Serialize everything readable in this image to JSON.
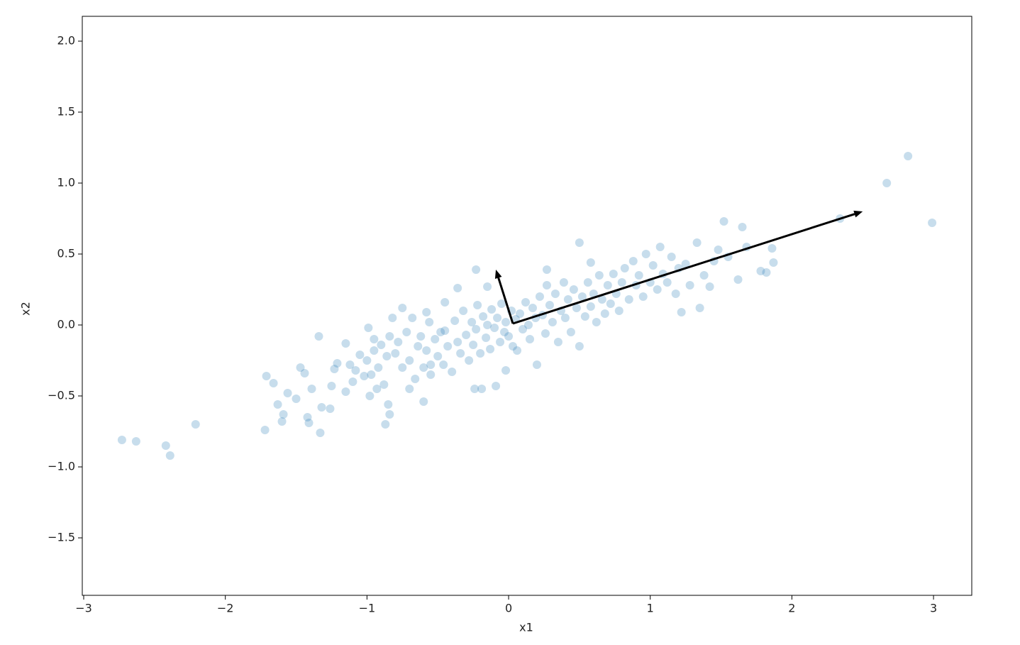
{
  "chart_data": {
    "type": "scatter",
    "xlabel": "x1",
    "ylabel": "x2",
    "xlim": [
      -3.01,
      3.27
    ],
    "ylim": [
      -1.905,
      2.175
    ],
    "xticks": [
      {
        "value": -3,
        "label": "−3"
      },
      {
        "value": -2,
        "label": "−2"
      },
      {
        "value": -1,
        "label": "−1"
      },
      0,
      1,
      2,
      3
    ],
    "yticks": [
      {
        "value": -1.5,
        "label": "−1.5"
      },
      {
        "value": -1,
        "label": "−1.0"
      },
      {
        "value": -0.5,
        "label": "−0.5"
      },
      {
        "value": 0,
        "label": "0.0"
      },
      0.5,
      {
        "value": 1,
        "label": "1.0"
      },
      1.5,
      {
        "value": 2,
        "label": "2.0"
      }
    ],
    "grid": false,
    "series": [
      {
        "color": "#1f77b4",
        "opacity": 0.25,
        "x": [
          -2.73,
          -2.63,
          -2.42,
          -2.39,
          -2.21,
          2.67,
          2.82,
          2.99,
          2.34,
          1.52,
          1.65,
          1.86,
          1.87,
          1.82,
          -1.72,
          -1.71,
          -1.66,
          -1.63,
          -1.6,
          -1.59,
          -1.56,
          -1.5,
          -1.47,
          -1.44,
          -1.42,
          -1.41,
          -1.39,
          -1.34,
          -1.33,
          -1.32,
          -1.26,
          -1.25,
          -1.23,
          -1.21,
          -1.15,
          -1.15,
          -1.1,
          -1.05,
          -0.99,
          -0.98,
          -0.93,
          -0.87,
          -0.85,
          -0.84,
          -0.82,
          -0.75,
          -0.7,
          -0.6,
          -0.58,
          -0.55,
          -0.45,
          -0.36,
          -0.24,
          -0.19,
          -0.23,
          -0.15,
          -0.09,
          -0.02,
          0.5,
          0.27,
          0.58,
          -0.8,
          -0.78,
          -0.75,
          -0.72,
          -0.7,
          -0.68,
          -0.66,
          -0.64,
          -0.62,
          -0.6,
          -0.58,
          -0.56,
          -0.55,
          -0.52,
          -0.5,
          -0.48,
          -0.46,
          -0.45,
          -0.43,
          -0.4,
          -0.38,
          -0.36,
          -0.34,
          -0.32,
          -0.3,
          -0.28,
          -0.26,
          -0.25,
          -0.23,
          -0.22,
          -0.2,
          -0.18,
          -0.16,
          -0.15,
          -0.13,
          -0.12,
          -0.1,
          -0.08,
          -0.06,
          -0.05,
          -0.03,
          -0.02,
          0,
          0.02,
          0.03,
          0.05,
          0.06,
          0.08,
          0.1,
          0.12,
          0.14,
          0.15,
          0.17,
          0.19,
          0.2,
          0.22,
          0.24,
          0.26,
          0.27,
          0.29,
          0.31,
          0.33,
          0.35,
          0.37,
          0.39,
          0.4,
          0.42,
          0.44,
          0.46,
          0.48,
          0.5,
          0.52,
          0.54,
          0.56,
          0.58,
          0.6,
          0.62,
          0.64,
          0.66,
          0.68,
          0.7,
          0.72,
          0.74,
          0.76,
          0.78,
          0.8,
          0.82,
          0.85,
          0.88,
          0.9,
          0.92,
          0.95,
          0.97,
          1,
          1.02,
          1.05,
          1.07,
          1.09,
          1.12,
          1.15,
          1.18,
          1.2,
          1.22,
          1.25,
          1.28,
          1.33,
          1.35,
          1.38,
          1.42,
          1.45,
          1.48,
          1.55,
          1.62,
          1.68,
          1.78,
          -1,
          -0.97,
          -0.95,
          -0.92,
          -0.9,
          -0.88,
          -0.86,
          -0.84,
          -1.08,
          -1.12,
          -0.95,
          -1.02
        ],
        "values": [
          -0.81,
          -0.82,
          -0.85,
          -0.92,
          -0.7,
          1,
          1.19,
          0.72,
          0.75,
          0.73,
          0.69,
          0.54,
          0.44,
          0.37,
          -0.74,
          -0.36,
          -0.41,
          -0.56,
          -0.68,
          -0.63,
          -0.48,
          -0.52,
          -0.3,
          -0.34,
          -0.65,
          -0.69,
          -0.45,
          -0.08,
          -0.76,
          -0.58,
          -0.59,
          -0.43,
          -0.31,
          -0.27,
          -0.13,
          -0.47,
          -0.4,
          -0.21,
          -0.02,
          -0.5,
          -0.45,
          -0.7,
          -0.56,
          -0.63,
          0.05,
          0.12,
          -0.45,
          -0.54,
          0.09,
          -0.28,
          0.16,
          0.26,
          -0.45,
          -0.45,
          0.39,
          0.27,
          -0.43,
          -0.32,
          0.58,
          0.39,
          0.44,
          -0.2,
          -0.12,
          -0.3,
          -0.05,
          -0.25,
          0.05,
          -0.38,
          -0.15,
          -0.08,
          -0.3,
          -0.18,
          0.02,
          -0.35,
          -0.1,
          -0.22,
          -0.05,
          -0.28,
          -0.04,
          -0.15,
          -0.33,
          0.03,
          -0.12,
          -0.2,
          0.1,
          -0.07,
          -0.25,
          0.02,
          -0.14,
          -0.03,
          0.14,
          -0.2,
          0.06,
          -0.09,
          0,
          -0.17,
          0.11,
          -0.02,
          0.05,
          -0.12,
          0.15,
          -0.05,
          0.02,
          -0.08,
          0.1,
          -0.15,
          0.04,
          -0.18,
          0.08,
          -0.03,
          0.16,
          0,
          -0.1,
          0.12,
          0.05,
          -0.28,
          0.2,
          0.07,
          -0.06,
          0.28,
          0.14,
          0.02,
          0.22,
          -0.12,
          0.1,
          0.3,
          0.05,
          0.18,
          -0.05,
          0.25,
          0.12,
          -0.15,
          0.2,
          0.06,
          0.3,
          0.13,
          0.22,
          0.02,
          0.35,
          0.18,
          0.08,
          0.28,
          0.15,
          0.36,
          0.22,
          0.1,
          0.3,
          0.4,
          0.18,
          0.45,
          0.28,
          0.35,
          0.2,
          0.5,
          0.3,
          0.42,
          0.25,
          0.55,
          0.36,
          0.3,
          0.48,
          0.22,
          0.4,
          0.09,
          0.43,
          0.28,
          0.58,
          0.12,
          0.35,
          0.27,
          0.45,
          0.53,
          0.48,
          0.32,
          0.55,
          0.38,
          -0.25,
          -0.35,
          -0.18,
          -0.3,
          -0.14,
          -0.42,
          -0.22,
          -0.08,
          -0.32,
          -0.28,
          -0.1,
          -0.36
        ]
      }
    ],
    "arrows": [
      {
        "color": "#000000",
        "x": [
          0.03,
          2.5
        ],
        "y": [
          0.01,
          0.8
        ]
      },
      {
        "color": "#000000",
        "x": [
          0.03,
          -0.09
        ],
        "y": [
          0.01,
          0.39
        ]
      }
    ]
  }
}
